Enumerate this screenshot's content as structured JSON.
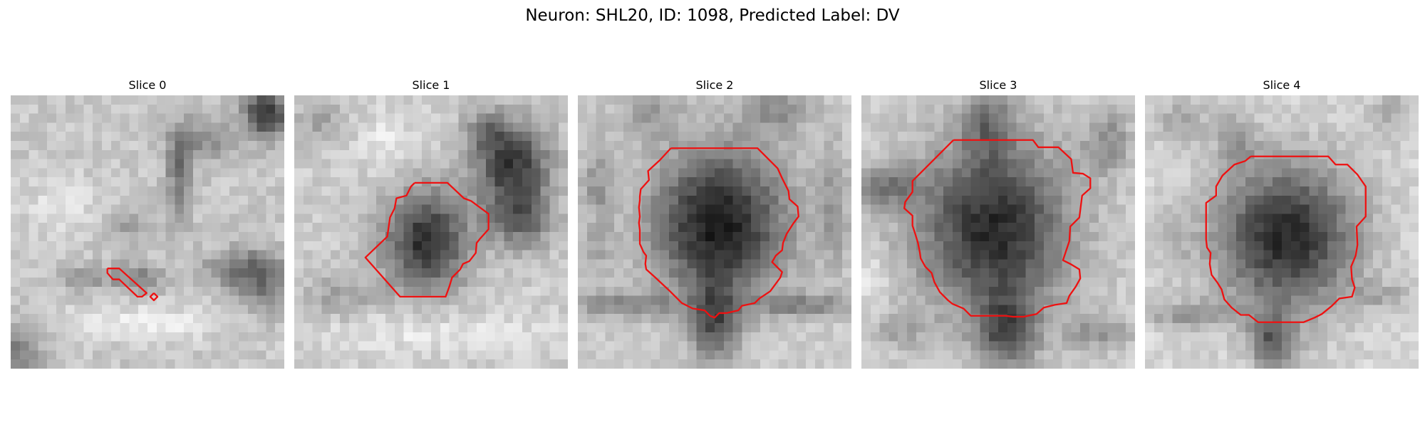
{
  "figure": {
    "title": "Neuron: SHL20, ID: 1098, Predicted Label: DV"
  },
  "panels": [
    {
      "title": "Slice 0"
    },
    {
      "title": "Slice 1"
    },
    {
      "title": "Slice 2"
    },
    {
      "title": "Slice 3"
    },
    {
      "title": "Slice 4"
    }
  ],
  "colors": {
    "contour": "#ee1111"
  }
}
